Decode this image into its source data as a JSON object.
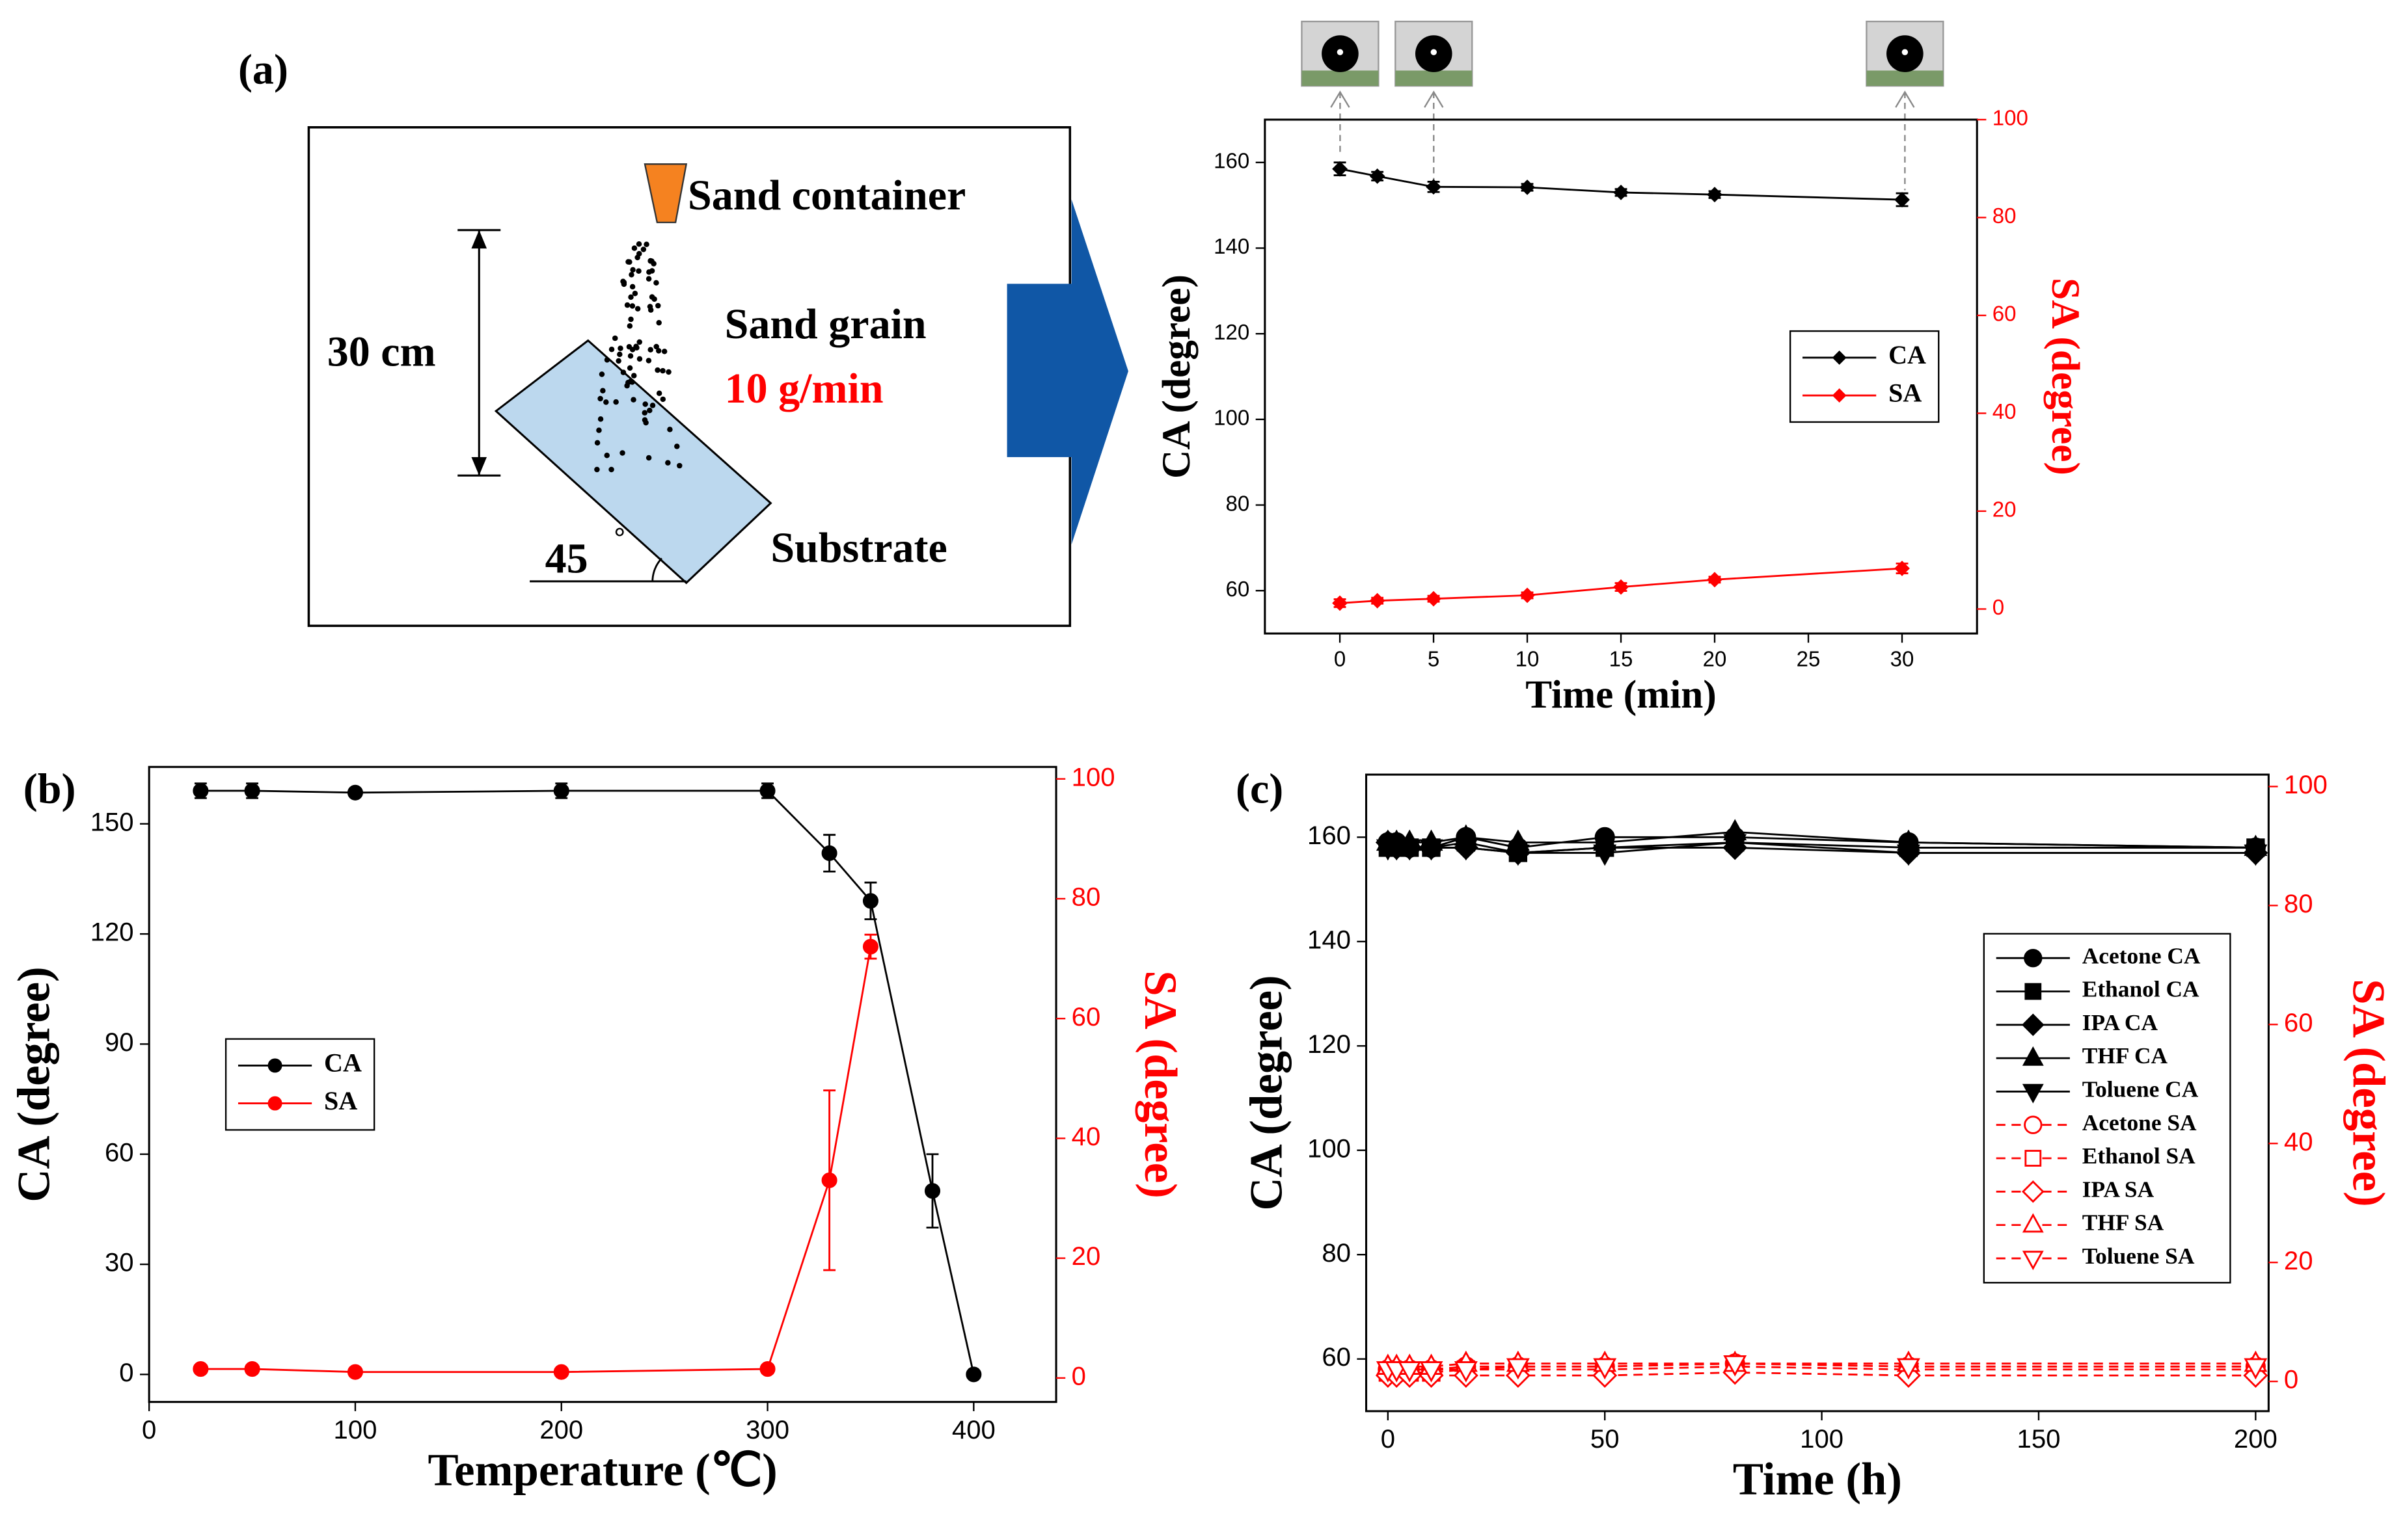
{
  "panel_labels": [
    "(a)",
    "(b)",
    "(c)"
  ],
  "diagram": {
    "container": "Sand container",
    "grain": "Sand grain",
    "rate": "10 g/min",
    "height": "30 cm",
    "angle": "45",
    "degree": "°",
    "substrate": "Substrate"
  },
  "chart_data": [
    {
      "type": "line",
      "xlabel": "Time (min)",
      "ylabel": "CA (degree)",
      "y2label": "SA (degree)",
      "y2color": "#ff0000",
      "xlim": [
        -4,
        34
      ],
      "xticks": [
        0,
        5,
        10,
        15,
        20,
        25,
        30
      ],
      "ylim": [
        50,
        170
      ],
      "yticks": [
        60,
        80,
        100,
        120,
        140,
        160
      ],
      "y2lim": [
        -5,
        100
      ],
      "y2ticks": [
        0,
        20,
        40,
        60,
        80,
        100
      ],
      "legend": "center right",
      "x": [
        0,
        2,
        5,
        10,
        15,
        20,
        30
      ],
      "series": [
        {
          "name": "CA",
          "color": "#000000",
          "marker": "diamond",
          "values": [
            158.5,
            156.8,
            154.3,
            154.2,
            153.0,
            152.5,
            151.3
          ],
          "errors": [
            1.5,
            1.0,
            1.2,
            0.8,
            0.8,
            0.8,
            1.5
          ]
        },
        {
          "name": "SA",
          "color": "#ff0000",
          "marker": "diamond",
          "axis": "y2",
          "values": [
            1.2,
            1.7,
            2.1,
            2.8,
            4.5,
            6.0,
            8.3
          ],
          "errors": [
            0.8,
            0.6,
            0.6,
            0.6,
            0.8,
            0.6,
            1.0
          ]
        }
      ]
    },
    {
      "type": "line",
      "xlabel": "Temperature (℃)",
      "ylabel": "CA (degree)",
      "y2label": "SA (degree)",
      "y2color": "#ff0000",
      "xlim": [
        0,
        440
      ],
      "xticks": [
        0,
        100,
        200,
        300,
        400
      ],
      "ylim": [
        -7.5,
        165.5
      ],
      "yticks": [
        0,
        30,
        60,
        90,
        120,
        150
      ],
      "y2lim": [
        -4,
        102
      ],
      "y2ticks": [
        0,
        20,
        40,
        60,
        80,
        100
      ],
      "legend": "center left",
      "x": [
        25,
        50,
        100,
        200,
        300,
        330,
        350,
        380,
        400
      ],
      "series": [
        {
          "name": "CA",
          "color": "#000000",
          "marker": "circle",
          "values": [
            159,
            159,
            158.5,
            159,
            159,
            142,
            129,
            50,
            0
          ],
          "errors": [
            2,
            2,
            1,
            2,
            2,
            5,
            5,
            10,
            0
          ]
        },
        {
          "name": "SA",
          "color": "#ff0000",
          "marker": "circle",
          "axis": "y2",
          "values": [
            1.5,
            1.5,
            1,
            1,
            1.5,
            33,
            72,
            null,
            null
          ],
          "errors": [
            0.5,
            0.5,
            0.5,
            0.5,
            0.5,
            15,
            2,
            null,
            null
          ]
        }
      ]
    },
    {
      "type": "line",
      "xlabel": "Time (h)",
      "ylabel": "CA (degree)",
      "y2label": "SA (degree)",
      "y2color": "#ff0000",
      "xlim": [
        -5,
        203
      ],
      "xticks": [
        0,
        50,
        100,
        150,
        200
      ],
      "ylim": [
        50,
        172
      ],
      "yticks": [
        60,
        80,
        100,
        120,
        140,
        160
      ],
      "y2lim": [
        -5,
        102
      ],
      "y2ticks": [
        0,
        20,
        40,
        60,
        80,
        100
      ],
      "legend": "center right",
      "x": [
        0,
        2,
        5,
        10,
        18,
        30,
        50,
        80,
        120,
        200
      ],
      "series": [
        {
          "name": "Acetone CA",
          "color": "#000000",
          "marker": "circle",
          "values": [
            159,
            159,
            158,
            158,
            160,
            158,
            160,
            160,
            159,
            158
          ]
        },
        {
          "name": "Ethanol CA",
          "color": "#000000",
          "marker": "square",
          "values": [
            158,
            158,
            158,
            158,
            159,
            157,
            158,
            159,
            158,
            158
          ]
        },
        {
          "name": "IPA CA",
          "color": "#000000",
          "marker": "diamond",
          "values": [
            159,
            158,
            158,
            158,
            158,
            157,
            158,
            158,
            157,
            157
          ]
        },
        {
          "name": "THF CA",
          "color": "#000000",
          "marker": "triangle",
          "values": [
            159,
            159,
            159,
            159,
            160,
            159,
            159,
            161,
            159,
            158
          ]
        },
        {
          "name": "Toluene CA",
          "color": "#000000",
          "marker": "triangle-down",
          "values": [
            158,
            158,
            158,
            158,
            158,
            157,
            157,
            159,
            157,
            157
          ]
        },
        {
          "name": "Acetone SA",
          "color": "#ff0000",
          "marker": "circle",
          "open": true,
          "linestyle": "dashed",
          "axis": "y2",
          "values": [
            2,
            2,
            2,
            2,
            2.5,
            2.5,
            2.5,
            3,
            2.5,
            2.5
          ]
        },
        {
          "name": "Ethanol SA",
          "color": "#ff0000",
          "marker": "square",
          "open": true,
          "linestyle": "dashed",
          "axis": "y2",
          "values": [
            1.5,
            1.5,
            1.5,
            1.5,
            2,
            2,
            2,
            2.5,
            2,
            2
          ]
        },
        {
          "name": "IPA SA",
          "color": "#ff0000",
          "marker": "diamond",
          "open": true,
          "linestyle": "dashed",
          "axis": "y2",
          "values": [
            1,
            1,
            1,
            1,
            1,
            1,
            1,
            1.5,
            1,
            1
          ]
        },
        {
          "name": "THF SA",
          "color": "#ff0000",
          "marker": "triangle",
          "open": true,
          "linestyle": "dashed",
          "axis": "y2",
          "values": [
            2.5,
            2.5,
            2.5,
            2.5,
            3,
            3,
            3,
            3,
            3,
            3
          ]
        },
        {
          "name": "Toluene SA",
          "color": "#ff0000",
          "marker": "triangle-down",
          "open": true,
          "linestyle": "dashed",
          "axis": "y2",
          "values": [
            2,
            2,
            2,
            2,
            2,
            2.5,
            2.5,
            3,
            2.5,
            2.5
          ]
        }
      ]
    }
  ]
}
